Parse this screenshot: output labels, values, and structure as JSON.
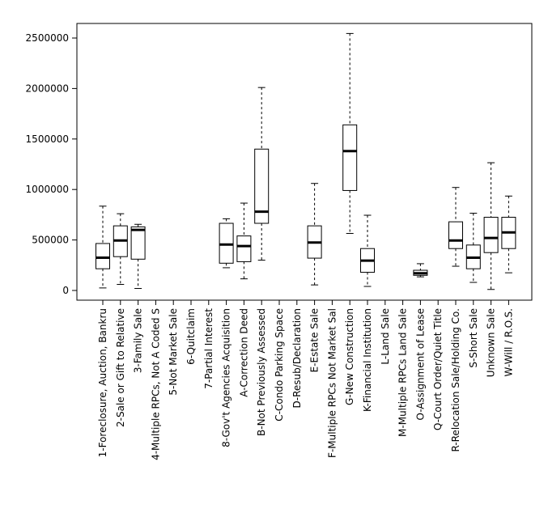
{
  "chart_data": {
    "type": "boxplot",
    "title": "",
    "xlabel": "",
    "ylabel": "",
    "ylim": [
      -100000,
      2650000
    ],
    "yticks": [
      0,
      500000,
      1000000,
      1500000,
      2000000,
      2500000
    ],
    "ytick_labels": [
      "0",
      "500000",
      "1000000",
      "1500000",
      "2000000",
      "2500000"
    ],
    "grid": false,
    "categories": [
      "1-Foreclosure, Auction, Bankru",
      "2-Sale or Gift to Relative",
      "3-Family Sale",
      "4-Multiple RPCs, Not A Coded S",
      "5-Not Market Sale",
      "6-Quitclaim",
      "7-Partial Interest",
      "8-Gov't Agencies Acquisition",
      "A-Correction Deed",
      "B-Not Previously Assessed",
      "C-Condo Parking Space",
      "D-Resub/Declaration",
      "E-Estate Sale",
      "F-Multiple RPCs Not Market Sal",
      "G-New Construction",
      "K-Financial Institution",
      "L-Land Sale",
      "M-Multiple RPCs Land Sale",
      "O-Assignment of Lease",
      "Q-Court Order/Quiet Title",
      "R-Relocation Sale/Holding Co.",
      "S-Short Sale",
      "Unknown Sale",
      "W-Will / R.O.S."
    ],
    "boxes": [
      {
        "min": 25000,
        "q1": 215000,
        "median": 325000,
        "q3": 465000,
        "max": 835000
      },
      {
        "min": 60000,
        "q1": 335000,
        "median": 495000,
        "q3": 640000,
        "max": 760000
      },
      {
        "min": 20000,
        "q1": 310000,
        "median": 600000,
        "q3": 630000,
        "max": 655000
      },
      null,
      null,
      null,
      null,
      {
        "min": 225000,
        "q1": 270000,
        "median": 455000,
        "q3": 665000,
        "max": 710000
      },
      {
        "min": 115000,
        "q1": 285000,
        "median": 440000,
        "q3": 540000,
        "max": 865000
      },
      {
        "min": 300000,
        "q1": 665000,
        "median": 780000,
        "q3": 1400000,
        "max": 2010000
      },
      null,
      null,
      {
        "min": 55000,
        "q1": 320000,
        "median": 475000,
        "q3": 640000,
        "max": 1060000
      },
      null,
      {
        "min": 565000,
        "q1": 990000,
        "median": 1380000,
        "q3": 1640000,
        "max": 2545000
      },
      {
        "min": 40000,
        "q1": 180000,
        "median": 295000,
        "q3": 415000,
        "max": 745000
      },
      null,
      null,
      {
        "min": 135000,
        "q1": 150000,
        "median": 170000,
        "q3": 200000,
        "max": 265000
      },
      null,
      {
        "min": 240000,
        "q1": 415000,
        "median": 495000,
        "q3": 680000,
        "max": 1020000
      },
      {
        "min": 80000,
        "q1": 215000,
        "median": 325000,
        "q3": 450000,
        "max": 765000
      },
      {
        "min": 10000,
        "q1": 375000,
        "median": 520000,
        "q3": 725000,
        "max": 1265000
      },
      {
        "min": 175000,
        "q1": 415000,
        "median": 575000,
        "q3": 725000,
        "max": 935000
      }
    ]
  }
}
